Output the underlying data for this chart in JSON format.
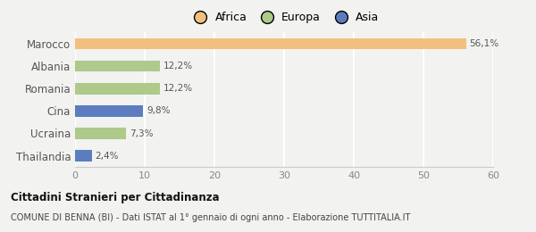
{
  "categories": [
    "Marocco",
    "Albania",
    "Romania",
    "Cina",
    "Ucraina",
    "Thailandia"
  ],
  "values": [
    56.1,
    12.2,
    12.2,
    9.8,
    7.3,
    2.4
  ],
  "labels": [
    "56,1%",
    "12,2%",
    "12,2%",
    "9,8%",
    "7,3%",
    "2,4%"
  ],
  "colors": [
    "#f2c07e",
    "#aec98a",
    "#aec98a",
    "#5b7dbf",
    "#aec98a",
    "#5b7dbf"
  ],
  "legend_labels": [
    "Africa",
    "Europa",
    "Asia"
  ],
  "legend_colors": [
    "#f2c07e",
    "#aec98a",
    "#5b7dbf"
  ],
  "xlim": [
    0,
    60
  ],
  "xticks": [
    0,
    10,
    20,
    30,
    40,
    50,
    60
  ],
  "title_main": "Cittadini Stranieri per Cittadinanza",
  "title_sub": "COMUNE DI BENNA (BI) - Dati ISTAT al 1° gennaio di ogni anno - Elaborazione TUTTITALIA.IT",
  "background_color": "#f2f2f0",
  "bar_height": 0.5
}
